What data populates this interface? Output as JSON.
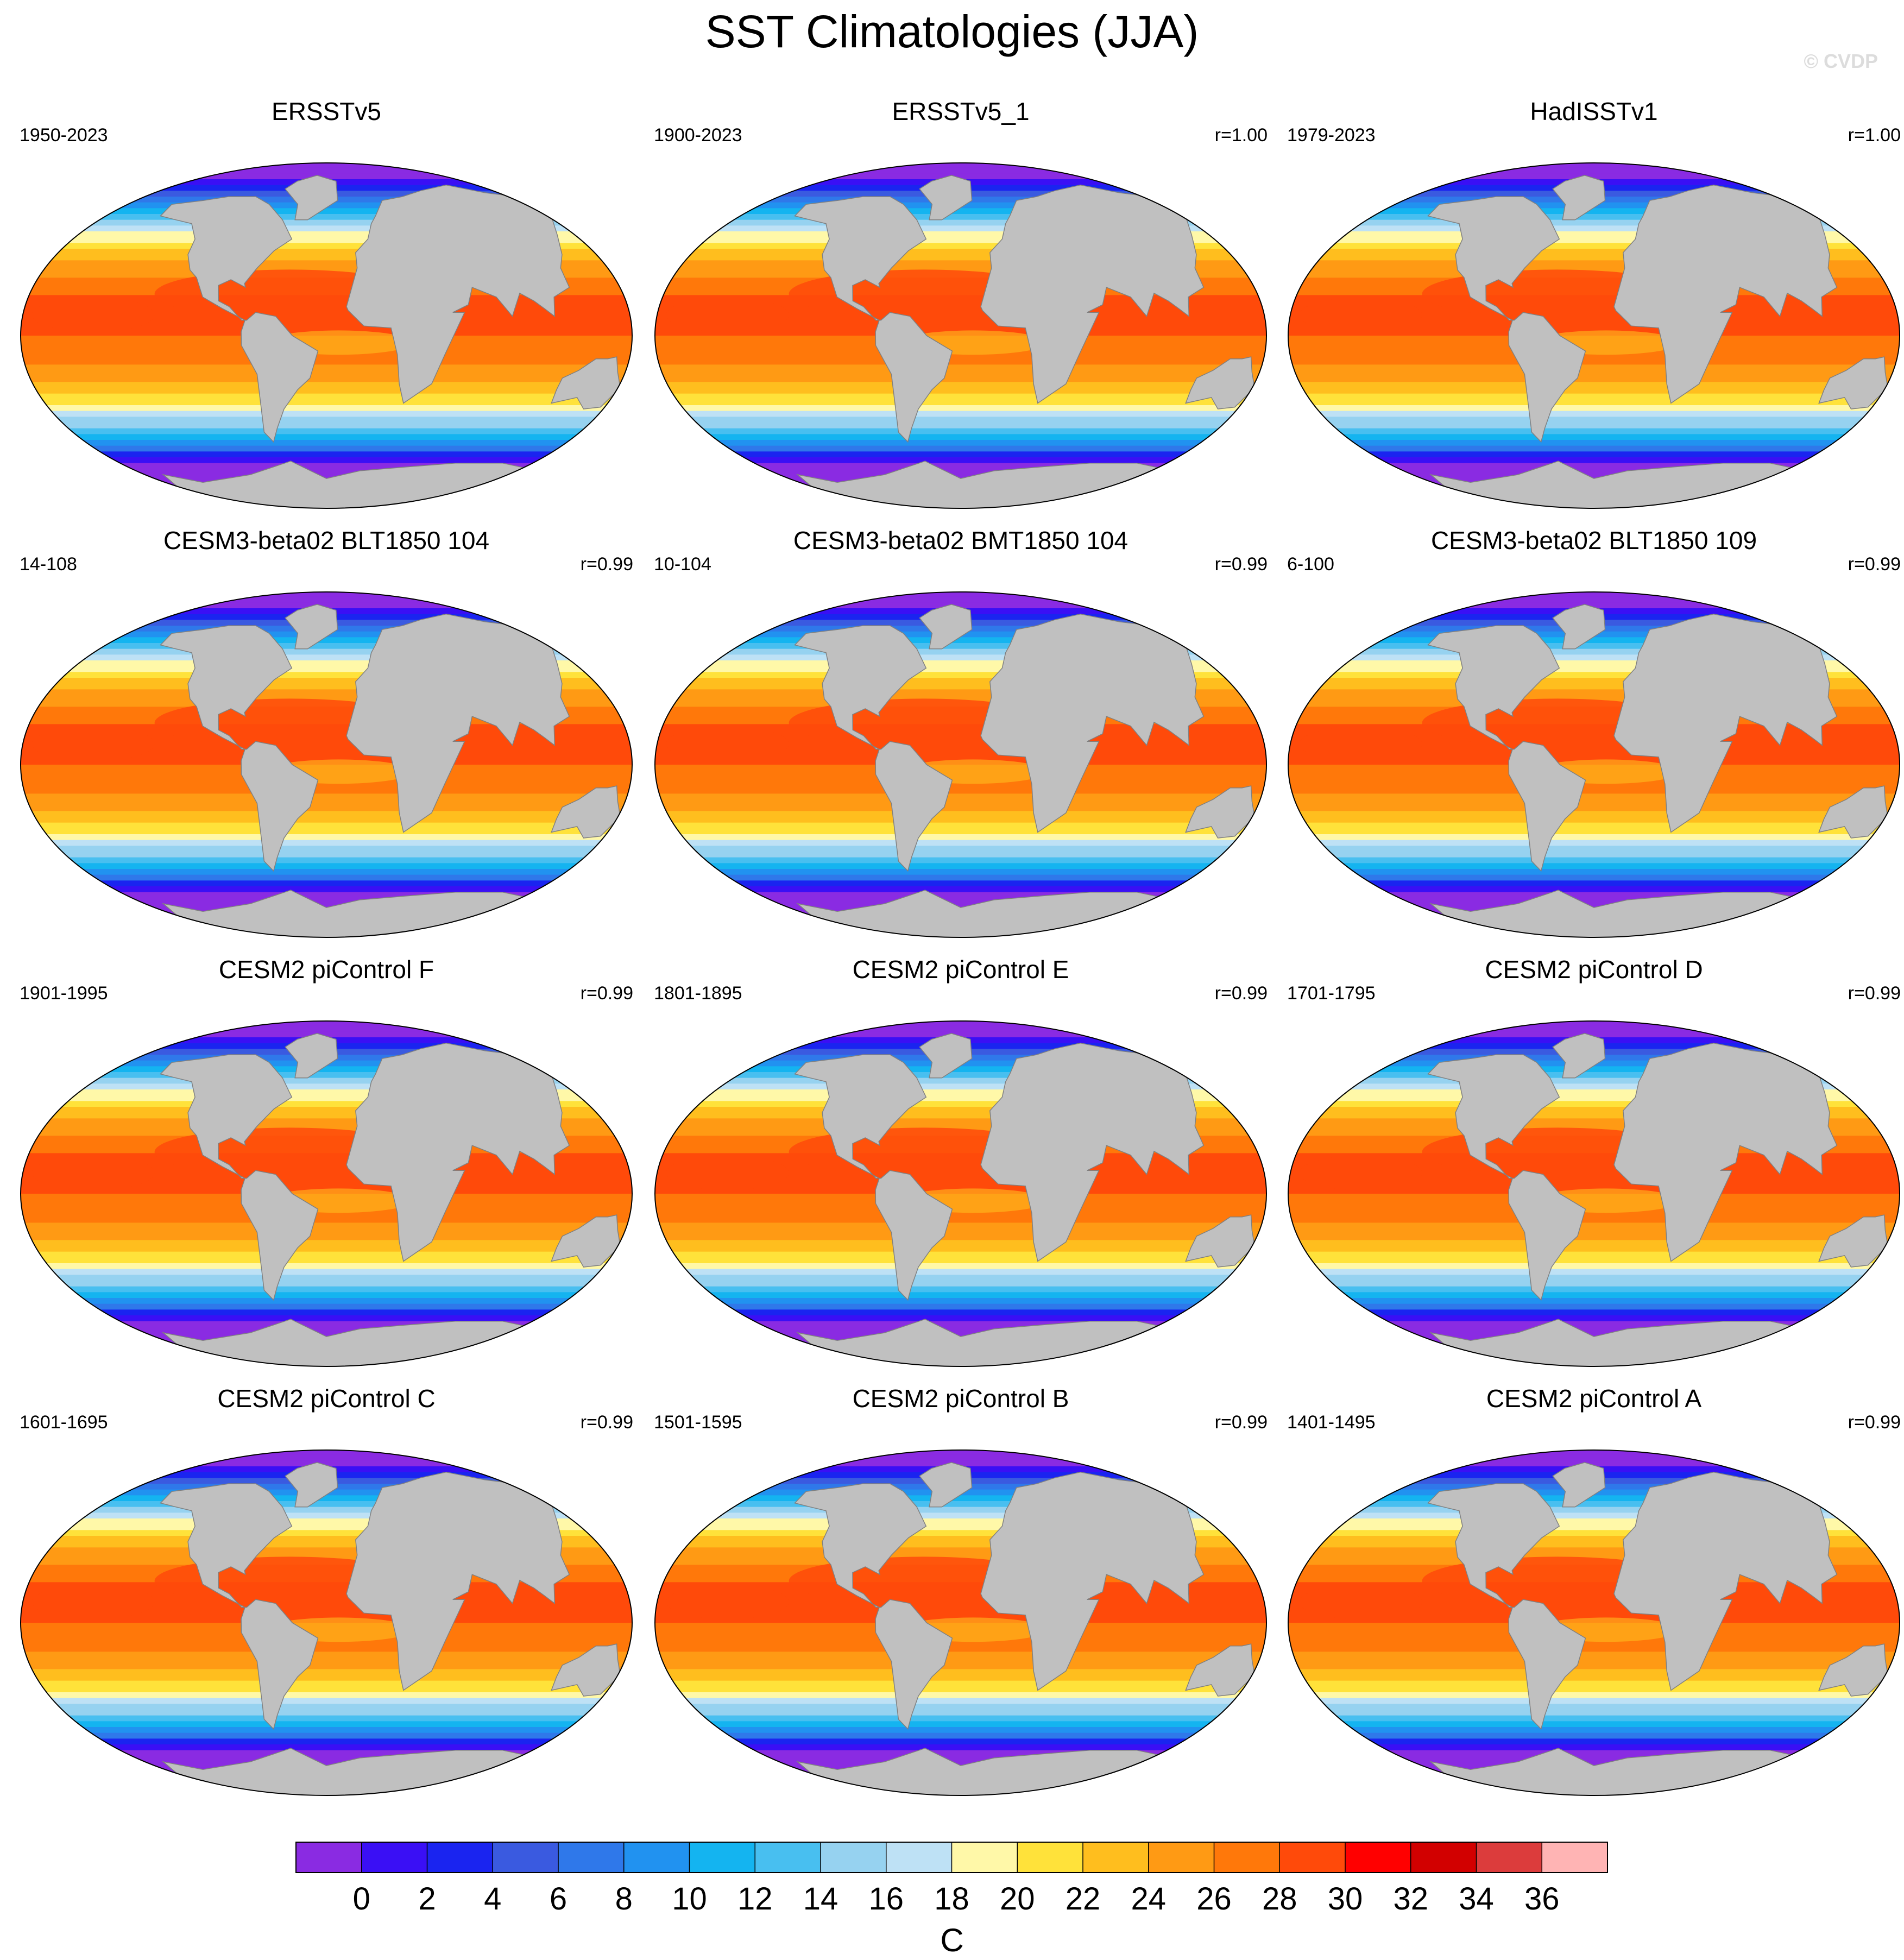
{
  "figure": {
    "title": "SST Climatologies (JJA)",
    "watermark": "© CVDP"
  },
  "chart_data": {
    "type": "heatmap",
    "projection": "Robinson",
    "variable": "SST",
    "season": "JJA",
    "panels": [
      {
        "title": "ERSSTv5",
        "years": "1950-2023",
        "r": ""
      },
      {
        "title": "ERSSTv5_1",
        "years": "1900-2023",
        "r": "r=1.00"
      },
      {
        "title": "HadISSTv1",
        "years": "1979-2023",
        "r": "r=1.00"
      },
      {
        "title": "CESM3-beta02 BLT1850 104",
        "years": "14-108",
        "r": "r=0.99"
      },
      {
        "title": "CESM3-beta02 BMT1850 104",
        "years": "10-104",
        "r": "r=0.99"
      },
      {
        "title": "CESM3-beta02 BLT1850 109",
        "years": "6-100",
        "r": "r=0.99"
      },
      {
        "title": "CESM2 piControl F",
        "years": "1901-1995",
        "r": "r=0.99"
      },
      {
        "title": "CESM2 piControl E",
        "years": "1801-1895",
        "r": "r=0.99"
      },
      {
        "title": "CESM2 piControl D",
        "years": "1701-1795",
        "r": "r=0.99"
      },
      {
        "title": "CESM2 piControl C",
        "years": "1601-1695",
        "r": "r=0.99"
      },
      {
        "title": "CESM2 piControl B",
        "years": "1501-1595",
        "r": "r=0.99"
      },
      {
        "title": "CESM2 piControl A",
        "years": "1401-1495",
        "r": "r=0.99"
      }
    ],
    "colorbar": {
      "unit": "C",
      "tick_labels": [
        "0",
        "2",
        "4",
        "6",
        "8",
        "10",
        "12",
        "14",
        "16",
        "18",
        "20",
        "22",
        "24",
        "26",
        "28",
        "30",
        "32",
        "34",
        "36"
      ],
      "colors": [
        "#8a2be2",
        "#3a0ff5",
        "#1a24f0",
        "#3a5ae0",
        "#2f78ea",
        "#2192f0",
        "#14b4f0",
        "#48bff0",
        "#96d2f0",
        "#bee1f5",
        "#fff8a8",
        "#ffe23a",
        "#ffbe1e",
        "#ff9a14",
        "#ff780a",
        "#ff4a0a",
        "#ff0000",
        "#d20000",
        "#dc3c3c",
        "#ffb4b4"
      ]
    },
    "land_color": "#c0c0c0"
  }
}
